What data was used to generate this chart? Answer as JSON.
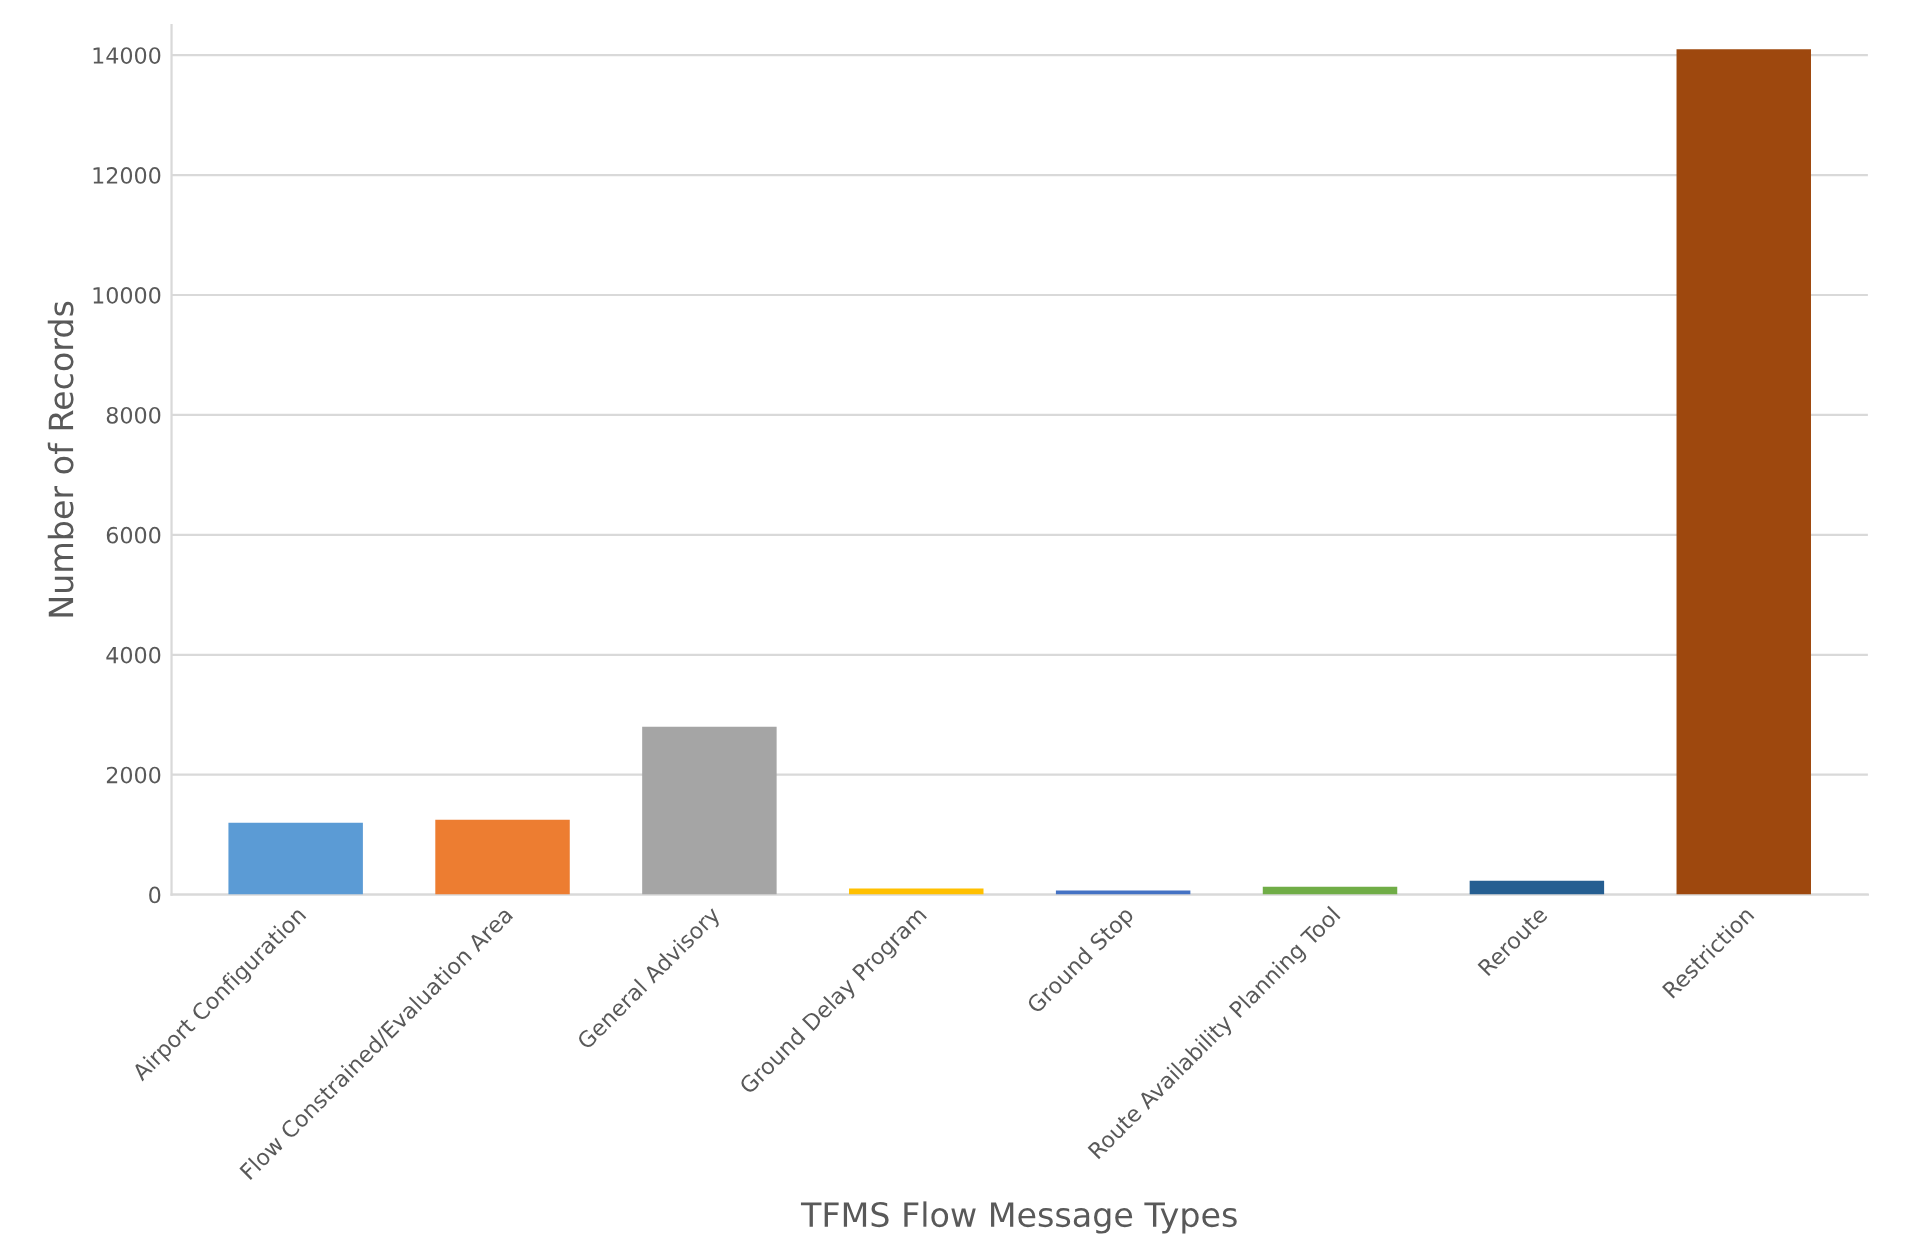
{
  "chart_data": {
    "type": "bar",
    "xlabel": "TFMS Flow Message Types",
    "ylabel": "Number of Records",
    "categories": [
      "Airport Configuration",
      "Flow Constrained/Evaluation Area",
      "General Advisory",
      "Ground Delay Program",
      "Ground Stop",
      "Route Availability Planning Tool",
      "Reroute",
      "Restriction"
    ],
    "values": [
      1200,
      1250,
      2800,
      100,
      70,
      130,
      230,
      14100
    ],
    "colors": [
      "#5b9bd5",
      "#ed7d31",
      "#a5a5a5",
      "#ffc000",
      "#4472c4",
      "#70ad47",
      "#255e91",
      "#9e480e"
    ],
    "ylim": [
      0,
      14500
    ],
    "yticks": [
      0,
      2000,
      4000,
      6000,
      8000,
      10000,
      12000,
      14000
    ],
    "grid": "y"
  }
}
